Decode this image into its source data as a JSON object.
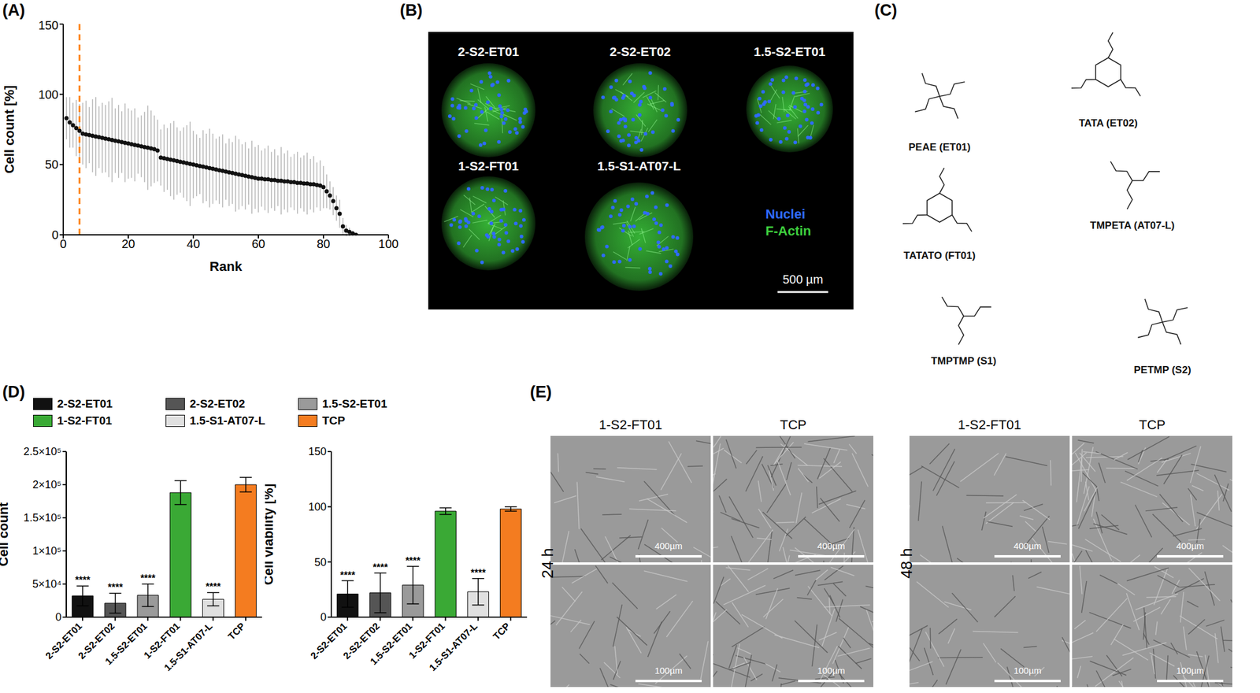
{
  "panel_labels": [
    "(A)",
    "(B)",
    "(C)",
    "(D)",
    "(E)"
  ],
  "chart_data": [
    {
      "type": "scatter",
      "x_label": "Rank",
      "y_label": "Cell count [%]",
      "x": [
        1,
        2,
        3,
        4,
        5,
        6,
        7,
        8,
        9,
        10,
        11,
        12,
        13,
        14,
        15,
        16,
        17,
        18,
        19,
        20,
        21,
        22,
        23,
        24,
        25,
        26,
        27,
        28,
        29,
        30,
        31,
        32,
        33,
        34,
        35,
        36,
        37,
        38,
        39,
        40,
        41,
        42,
        43,
        44,
        45,
        46,
        47,
        48,
        49,
        50,
        51,
        52,
        53,
        54,
        55,
        56,
        57,
        58,
        59,
        60,
        61,
        62,
        63,
        64,
        65,
        66,
        67,
        68,
        69,
        70,
        71,
        72,
        73,
        74,
        75,
        76,
        77,
        78,
        79,
        80,
        81,
        82,
        83,
        84,
        85,
        86,
        87,
        88,
        89,
        90
      ],
      "values": [
        83,
        80,
        78,
        76,
        74,
        72,
        71.5,
        71,
        70.5,
        70,
        69.5,
        69,
        68.5,
        68,
        67.5,
        67,
        66.5,
        66,
        65.5,
        65,
        64.5,
        64,
        63.5,
        63,
        62.5,
        62,
        61.5,
        61,
        60,
        55,
        54.5,
        54,
        53.5,
        53,
        52.5,
        52,
        51.5,
        51,
        50.5,
        50,
        49.5,
        49,
        48.5,
        48,
        47.5,
        47,
        46.5,
        46,
        45.5,
        45,
        44.5,
        44,
        43.5,
        43,
        42.5,
        42,
        41.5,
        41,
        40.5,
        40,
        40,
        39.5,
        39.5,
        39,
        39,
        38.5,
        38.5,
        38,
        38,
        37.5,
        37.5,
        37,
        37,
        36.5,
        36.5,
        36,
        36,
        35.5,
        35,
        34,
        31,
        28,
        24,
        19,
        15,
        6,
        3,
        2,
        1,
        0
      ],
      "errors": [
        15,
        18,
        16,
        20,
        19,
        22,
        24,
        20,
        26,
        28,
        22,
        25,
        24,
        27,
        30,
        23,
        26,
        22,
        28,
        25,
        24,
        26,
        20,
        22,
        25,
        30,
        27,
        24,
        22,
        20,
        24,
        22,
        26,
        28,
        24,
        22,
        25,
        27,
        30,
        24,
        22,
        20,
        26,
        24,
        28,
        25,
        22,
        24,
        26,
        20,
        24,
        22,
        27,
        25,
        22,
        24,
        20,
        26,
        22,
        24,
        20,
        22,
        24,
        20,
        22,
        18,
        24,
        20,
        22,
        18,
        20,
        22,
        18,
        20,
        22,
        18,
        20,
        16,
        18,
        15,
        12,
        10,
        10,
        9,
        10,
        6,
        4,
        3,
        2,
        1
      ],
      "xlim": [
        0,
        100
      ],
      "xticks": [
        0,
        20,
        40,
        60,
        80,
        100
      ],
      "ylim": [
        0,
        150
      ],
      "yticks": [
        0,
        50,
        100,
        150
      ],
      "color": "#111111",
      "marker": "circle",
      "reference_line": {
        "x": 5,
        "color": "#ff7f0e",
        "line_style": "dashed"
      }
    },
    {
      "type": "bar",
      "y_label": "Cell count",
      "categories": [
        "2-S2-ET01",
        "2-S2-ET02",
        "1.5-S2-ET01",
        "1-S2-FT01",
        "1.5-S1-AT07-L",
        "TCP"
      ],
      "values": [
        32000,
        21000,
        33000,
        188000,
        27000,
        200000
      ],
      "errors": [
        15000,
        15000,
        17000,
        18000,
        10000,
        11000
      ],
      "colors": [
        "#111111",
        "#555555",
        "#9a9a9a",
        "#3aa935",
        "#e0e0e0",
        "#f47c20"
      ],
      "ylim": [
        0,
        250000
      ],
      "yticks": [
        0,
        {
          "value": 50000,
          "label": "5×10⁴"
        },
        {
          "value": 100000,
          "label": "1×10⁵"
        },
        {
          "value": 150000,
          "label": "1.5×10⁵"
        },
        {
          "value": 200000,
          "label": "2×10⁵"
        },
        {
          "value": 250000,
          "label": "2.5×10⁵"
        }
      ],
      "significance": [
        "****",
        "****",
        "****",
        null,
        "****",
        null
      ],
      "legend": "top"
    },
    {
      "type": "bar",
      "y_label": "Cell viability [%]",
      "categories": [
        "2-S2-ET01",
        "2-S2-ET02",
        "1.5-S2-ET01",
        "1-S2-FT01",
        "1.5-S1-AT07-L",
        "TCP"
      ],
      "values": [
        21,
        22,
        29,
        96,
        23,
        98
      ],
      "errors": [
        12,
        18,
        17,
        3,
        12,
        2
      ],
      "colors": [
        "#111111",
        "#555555",
        "#9a9a9a",
        "#3aa935",
        "#e0e0e0",
        "#f47c20"
      ],
      "ylim": [
        0,
        150
      ],
      "yticks": [
        0,
        50,
        100,
        150
      ],
      "significance": [
        "****",
        "****",
        "****",
        null,
        "****",
        null
      ]
    }
  ],
  "microscopy_b": {
    "images": [
      "2-S2-ET01",
      "2-S2-ET02",
      "1.5-S2-ET01",
      "1-S2-FT01",
      "1.5-S1-AT07-L"
    ],
    "channels": [
      {
        "name": "Nuclei",
        "color": "#2f6bff"
      },
      {
        "name": "F-Actin",
        "color": "#3ecf3e"
      }
    ],
    "scale_bar": "500 µm"
  },
  "structures_c": {
    "names": [
      "PEAE (ET01)",
      "TATA (ET02)",
      "TATATO (FT01)",
      "TMPETA (AT07-L)",
      "TMPTMP (S1)",
      "PETMP (S2)"
    ]
  },
  "microscopy_e": {
    "columns": [
      "1-S2-FT01",
      "TCP"
    ],
    "times": [
      "24 h",
      "48 h"
    ],
    "scale_bars": [
      "400µm",
      "100µm"
    ]
  }
}
